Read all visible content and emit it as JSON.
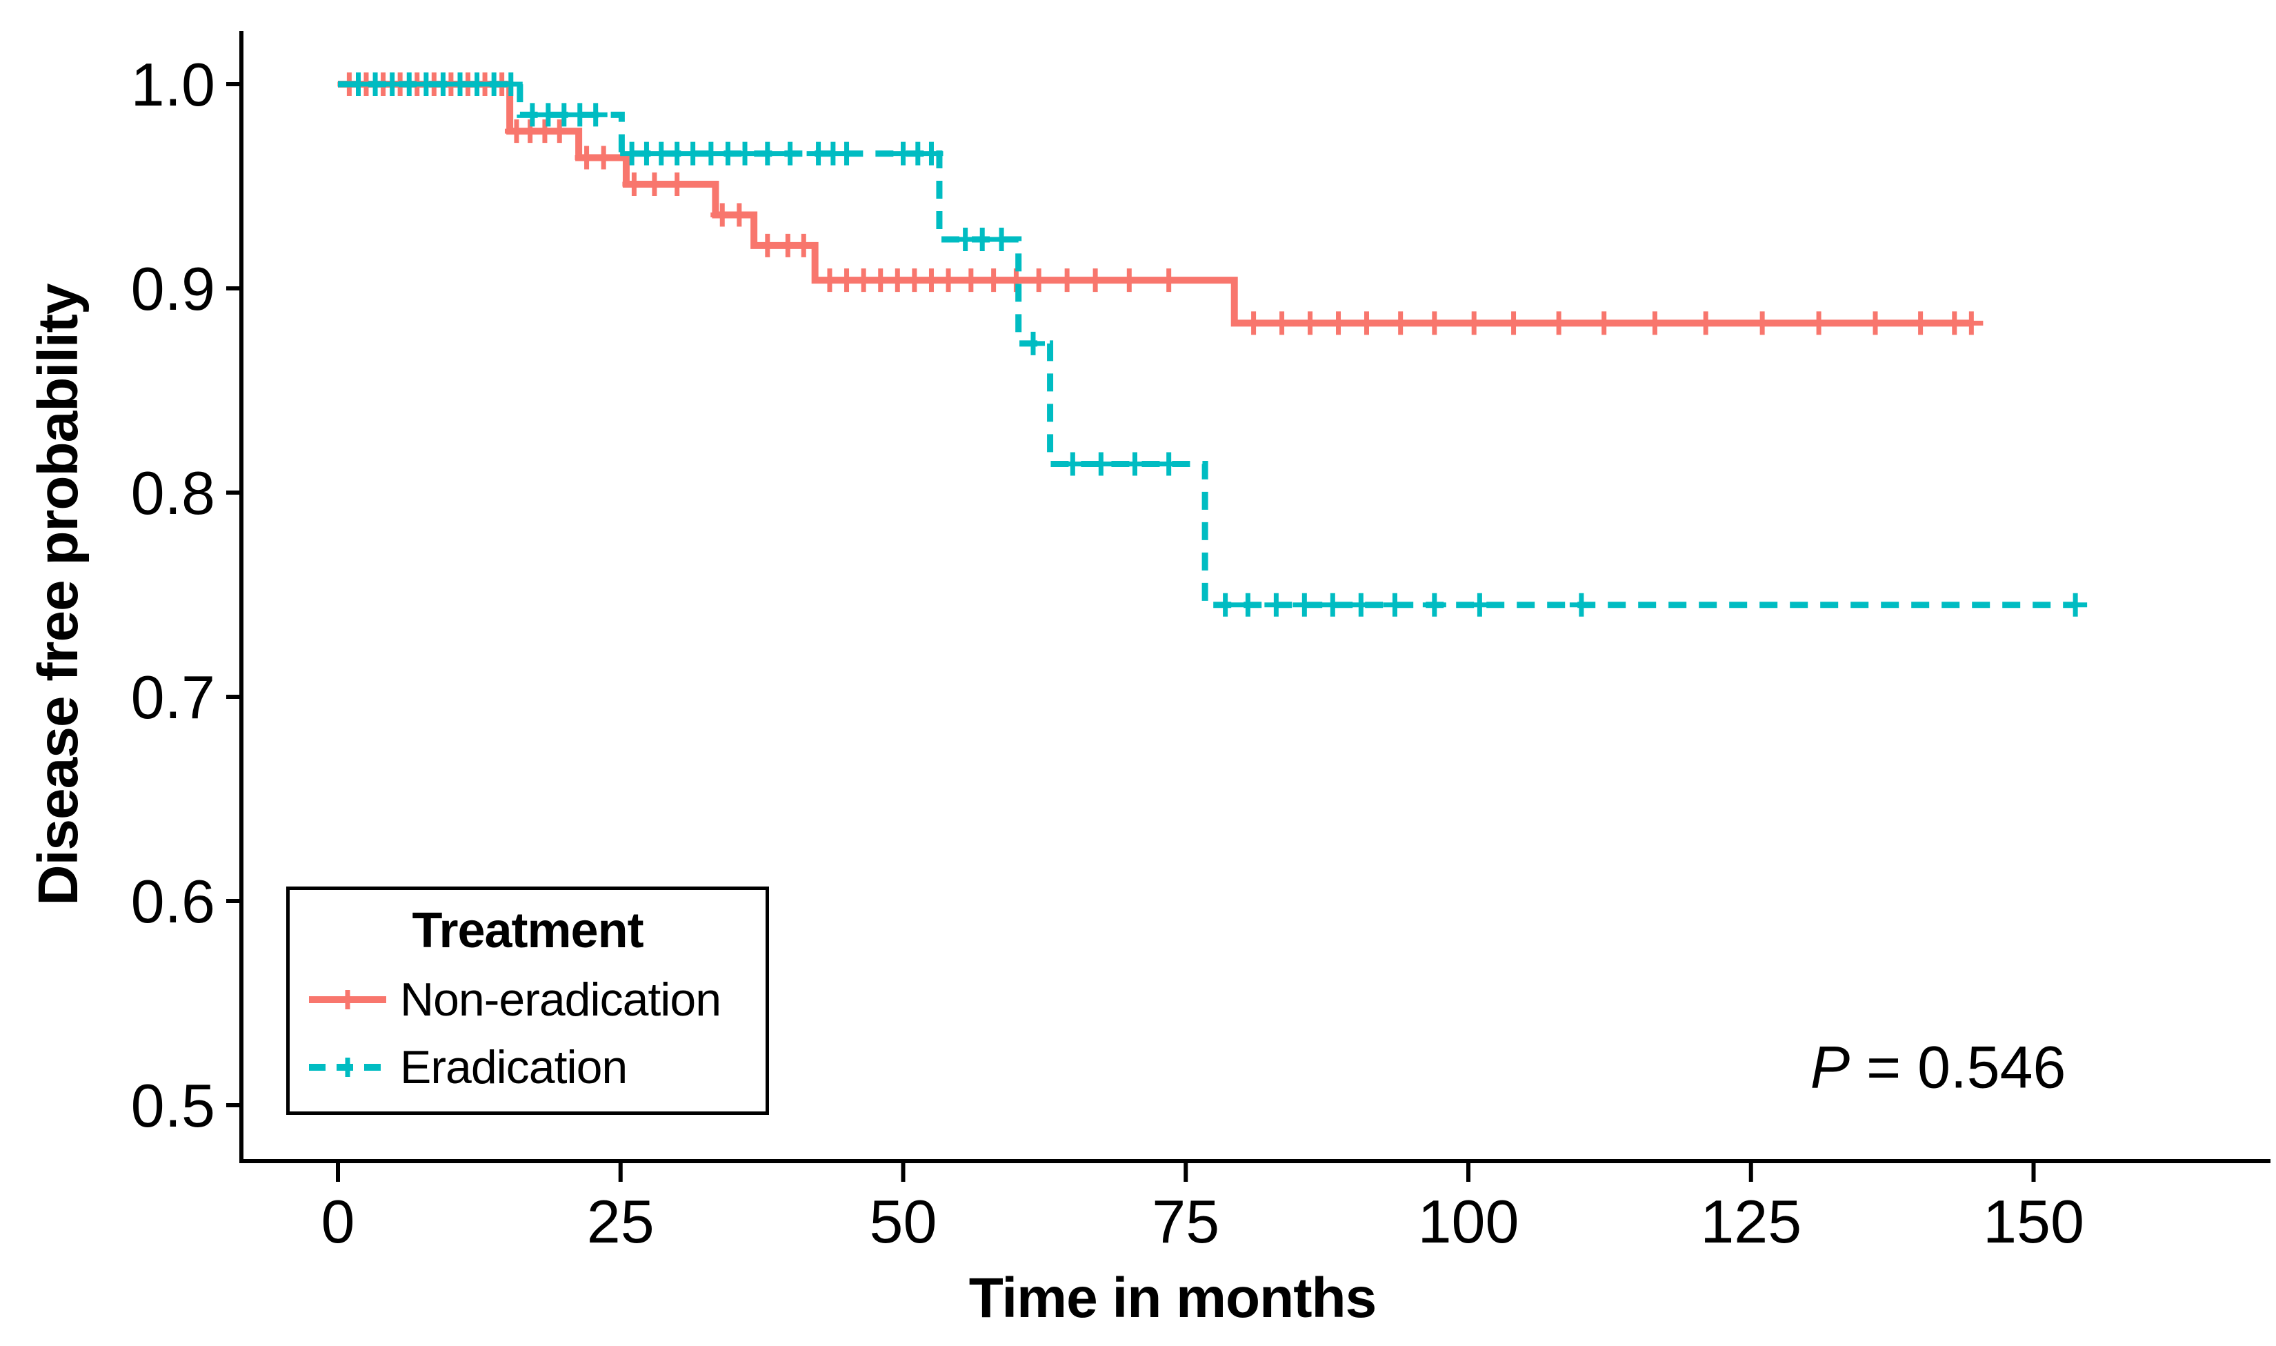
{
  "figure": {
    "background": "#ffffff",
    "text_color": "#000000",
    "axis_color": "#000000"
  },
  "chart_data": {
    "type": "line",
    "subtype": "kaplan_meier_step_curve",
    "title": "",
    "xlabel": "Time in months",
    "ylabel": "Disease free probability",
    "xlim": [
      0,
      168
    ],
    "ylim": [
      0.48,
      1.02
    ],
    "grid": false,
    "x_ticks": [
      0,
      25,
      50,
      75,
      100,
      125,
      150
    ],
    "x_tick_labels": [
      "0",
      "25",
      "50",
      "75",
      "100",
      "125",
      "150"
    ],
    "y_ticks": [
      1.0,
      0.9,
      0.8,
      0.7,
      0.6,
      0.5
    ],
    "y_tick_labels": [
      "1.0",
      "0.9",
      "0.8",
      "0.7",
      "0.6",
      "0.5"
    ],
    "legend": {
      "title": "Treatment",
      "position": "bottom-left",
      "items": [
        {
          "label": "Non-eradication",
          "color": "#F8766D",
          "line_style": "solid"
        },
        {
          "label": "Eradication",
          "color": "#00BCC2",
          "line_style": "dashed"
        }
      ]
    },
    "annotation": {
      "text": "P = 0.546",
      "p_italic": "P",
      "p_rest": " = 0.546"
    },
    "series": [
      {
        "name": "Non-eradication",
        "color": "#F8766D",
        "line_style": "solid",
        "start": [
          0,
          1.0
        ],
        "steps": [
          [
            15.2,
            0.977
          ],
          [
            21.3,
            0.964
          ],
          [
            25.5,
            0.951
          ],
          [
            33.4,
            0.936
          ],
          [
            36.8,
            0.921
          ],
          [
            42.2,
            0.904
          ],
          [
            79.3,
            0.883
          ]
        ],
        "end_time": 144.5,
        "censor_marks": [
          [
            1,
            1.0
          ],
          [
            2.5,
            1.0
          ],
          [
            4,
            1.0
          ],
          [
            5.5,
            1.0
          ],
          [
            7,
            1.0
          ],
          [
            8.5,
            1.0
          ],
          [
            10,
            1.0
          ],
          [
            11.5,
            1.0
          ],
          [
            13,
            1.0
          ],
          [
            14.5,
            1.0
          ],
          [
            15.8,
            0.977
          ],
          [
            17,
            0.977
          ],
          [
            18.3,
            0.977
          ],
          [
            19.6,
            0.977
          ],
          [
            22,
            0.964
          ],
          [
            23.5,
            0.964
          ],
          [
            26.2,
            0.951
          ],
          [
            28,
            0.951
          ],
          [
            30,
            0.951
          ],
          [
            34,
            0.936
          ],
          [
            35.5,
            0.936
          ],
          [
            38,
            0.921
          ],
          [
            39.8,
            0.921
          ],
          [
            41.2,
            0.921
          ],
          [
            43.5,
            0.904
          ],
          [
            45,
            0.904
          ],
          [
            46.5,
            0.904
          ],
          [
            48,
            0.904
          ],
          [
            49.5,
            0.904
          ],
          [
            51,
            0.904
          ],
          [
            52.5,
            0.904
          ],
          [
            54,
            0.904
          ],
          [
            56,
            0.904
          ],
          [
            58,
            0.904
          ],
          [
            60,
            0.904
          ],
          [
            62,
            0.904
          ],
          [
            64.5,
            0.904
          ],
          [
            67,
            0.904
          ],
          [
            70,
            0.904
          ],
          [
            73.5,
            0.904
          ],
          [
            81,
            0.883
          ],
          [
            83.5,
            0.883
          ],
          [
            86,
            0.883
          ],
          [
            88.5,
            0.883
          ],
          [
            91,
            0.883
          ],
          [
            94,
            0.883
          ],
          [
            97,
            0.883
          ],
          [
            100.5,
            0.883
          ],
          [
            104,
            0.883
          ],
          [
            108,
            0.883
          ],
          [
            112,
            0.883
          ],
          [
            116.5,
            0.883
          ],
          [
            121,
            0.883
          ],
          [
            126,
            0.883
          ],
          [
            131,
            0.883
          ],
          [
            136,
            0.883
          ],
          [
            140,
            0.883
          ],
          [
            143,
            0.883
          ],
          [
            144.5,
            0.883
          ]
        ]
      },
      {
        "name": "Eradication",
        "color": "#00BCC2",
        "line_style": "dashed",
        "start": [
          0,
          1.0
        ],
        "steps": [
          [
            16.1,
            0.985
          ],
          [
            25.1,
            0.966
          ],
          [
            53.2,
            0.924
          ],
          [
            60.2,
            0.873
          ],
          [
            63.0,
            0.814
          ],
          [
            76.7,
            0.745
          ]
        ],
        "end_time": 153.7,
        "censor_marks": [
          [
            1.8,
            1.0
          ],
          [
            3.3,
            1.0
          ],
          [
            4.8,
            1.0
          ],
          [
            6.3,
            1.0
          ],
          [
            7.8,
            1.0
          ],
          [
            9.3,
            1.0
          ],
          [
            10.8,
            1.0
          ],
          [
            12.3,
            1.0
          ],
          [
            13.8,
            1.0
          ],
          [
            15.3,
            1.0
          ],
          [
            17.2,
            0.985
          ],
          [
            18.6,
            0.985
          ],
          [
            20,
            0.985
          ],
          [
            21.4,
            0.985
          ],
          [
            22.8,
            0.985
          ],
          [
            26,
            0.966
          ],
          [
            27.3,
            0.966
          ],
          [
            28.6,
            0.966
          ],
          [
            30,
            0.966
          ],
          [
            31.4,
            0.966
          ],
          [
            33,
            0.966
          ],
          [
            34.5,
            0.966
          ],
          [
            36,
            0.966
          ],
          [
            38,
            0.966
          ],
          [
            40,
            0.966
          ],
          [
            42.5,
            0.966
          ],
          [
            43.8,
            0.966
          ],
          [
            45,
            0.966
          ],
          [
            50,
            0.966
          ],
          [
            51.3,
            0.966
          ],
          [
            52.5,
            0.966
          ],
          [
            55.5,
            0.924
          ],
          [
            57,
            0.924
          ],
          [
            58.7,
            0.924
          ],
          [
            61.5,
            0.873
          ],
          [
            65,
            0.814
          ],
          [
            67.5,
            0.814
          ],
          [
            70.5,
            0.814
          ],
          [
            73.5,
            0.814
          ],
          [
            78.5,
            0.745
          ],
          [
            80.5,
            0.745
          ],
          [
            83,
            0.745
          ],
          [
            85.5,
            0.745
          ],
          [
            88,
            0.745
          ],
          [
            90.5,
            0.745
          ],
          [
            93.5,
            0.745
          ],
          [
            97,
            0.745
          ],
          [
            101,
            0.745
          ],
          [
            110,
            0.745
          ],
          [
            153.7,
            0.745
          ]
        ]
      }
    ]
  }
}
